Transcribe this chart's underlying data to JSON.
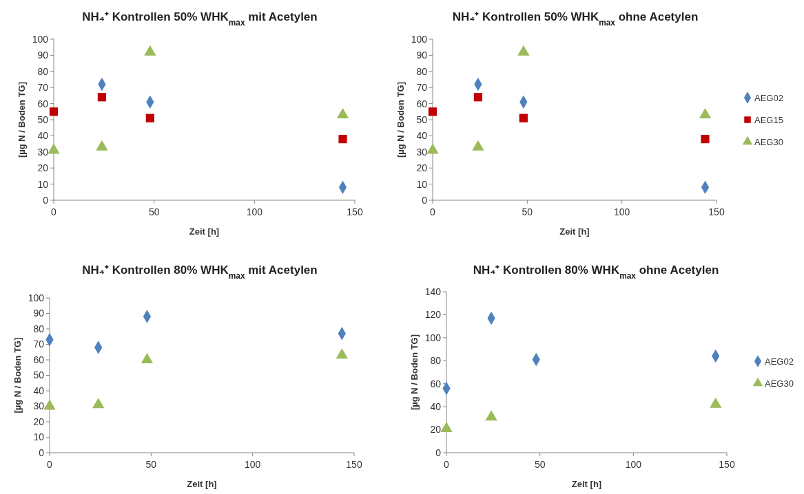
{
  "chart_data": [
    {
      "type": "scatter",
      "title": "NH₄⁺ Kontrollen 50% WHK$_{max}$ mit Acetylen",
      "xlabel": "Zeit [h]",
      "ylabel": "[µg N / Boden TG]",
      "x": [
        0,
        24,
        48,
        144
      ],
      "xlim": [
        0,
        150
      ],
      "xticks": [
        0,
        50,
        100,
        150
      ],
      "ylim": [
        0,
        100
      ],
      "yticks": [
        0,
        10,
        20,
        30,
        40,
        50,
        60,
        70,
        80,
        90,
        100
      ],
      "grid": false,
      "legend": false,
      "series": [
        {
          "color": "#4f81bd",
          "marker": "diamond",
          "values": [
            null,
            72,
            61,
            8
          ]
        },
        {
          "color": "#c00000",
          "marker": "square",
          "values": [
            55,
            64,
            51,
            38
          ]
        },
        {
          "color": "#9bbb59",
          "marker": "triangle",
          "values": [
            31,
            33,
            92,
            53
          ]
        }
      ]
    },
    {
      "type": "scatter",
      "title": "NH₄⁺ Kontrollen 50% WHK$_{max}$ ohne Acetylen",
      "xlabel": "Zeit [h]",
      "ylabel": "[µg N / Boden TG]",
      "x": [
        0,
        24,
        48,
        144
      ],
      "xlim": [
        0,
        150
      ],
      "xticks": [
        0,
        50,
        100,
        150
      ],
      "ylim": [
        0,
        100
      ],
      "yticks": [
        0,
        10,
        20,
        30,
        40,
        50,
        60,
        70,
        80,
        90,
        100
      ],
      "grid": false,
      "legend": "right",
      "series": [
        {
          "name": "AEG02",
          "color": "#4f81bd",
          "marker": "diamond",
          "values": [
            null,
            72,
            61,
            8
          ]
        },
        {
          "name": "AEG15",
          "color": "#c00000",
          "marker": "square",
          "values": [
            55,
            64,
            51,
            38
          ]
        },
        {
          "name": "AEG30",
          "color": "#9bbb59",
          "marker": "triangle",
          "values": [
            31,
            33,
            92,
            53
          ]
        }
      ]
    },
    {
      "type": "scatter",
      "title": "NH₄⁺ Kontrollen 80% WHK$_{max}$ mit Acetylen",
      "xlabel": "Zeit [h]",
      "ylabel": "[µg N / Boden TG]",
      "x": [
        0,
        24,
        48,
        144
      ],
      "xlim": [
        0,
        150
      ],
      "xticks": [
        0,
        50,
        100,
        150
      ],
      "ylim": [
        0,
        100
      ],
      "yticks": [
        0,
        10,
        20,
        30,
        40,
        50,
        60,
        70,
        80,
        90,
        100
      ],
      "grid": false,
      "legend": false,
      "series": [
        {
          "color": "#4f81bd",
          "marker": "diamond",
          "values": [
            73,
            68,
            88,
            77
          ]
        },
        {
          "color": "#9bbb59",
          "marker": "triangle",
          "values": [
            30,
            31,
            60,
            63
          ]
        }
      ]
    },
    {
      "type": "scatter",
      "title": "NH₄⁺ Kontrollen 80% WHK$_{max}$ ohne Acetylen",
      "xlabel": "Zeit [h]",
      "ylabel": "[µg N / Boden TG]",
      "x": [
        0,
        24,
        48,
        144
      ],
      "xlim": [
        0,
        150
      ],
      "xticks": [
        0,
        50,
        100,
        150
      ],
      "ylim": [
        0,
        140
      ],
      "yticks": [
        0,
        20,
        40,
        60,
        80,
        100,
        120,
        140
      ],
      "grid": false,
      "legend": "right",
      "series": [
        {
          "name": "AEG02",
          "color": "#4f81bd",
          "marker": "diamond",
          "values": [
            56,
            117,
            81,
            84
          ]
        },
        {
          "name": "AEG30",
          "color": "#9bbb59",
          "marker": "triangle",
          "values": [
            21,
            31,
            null,
            42
          ]
        }
      ]
    }
  ]
}
